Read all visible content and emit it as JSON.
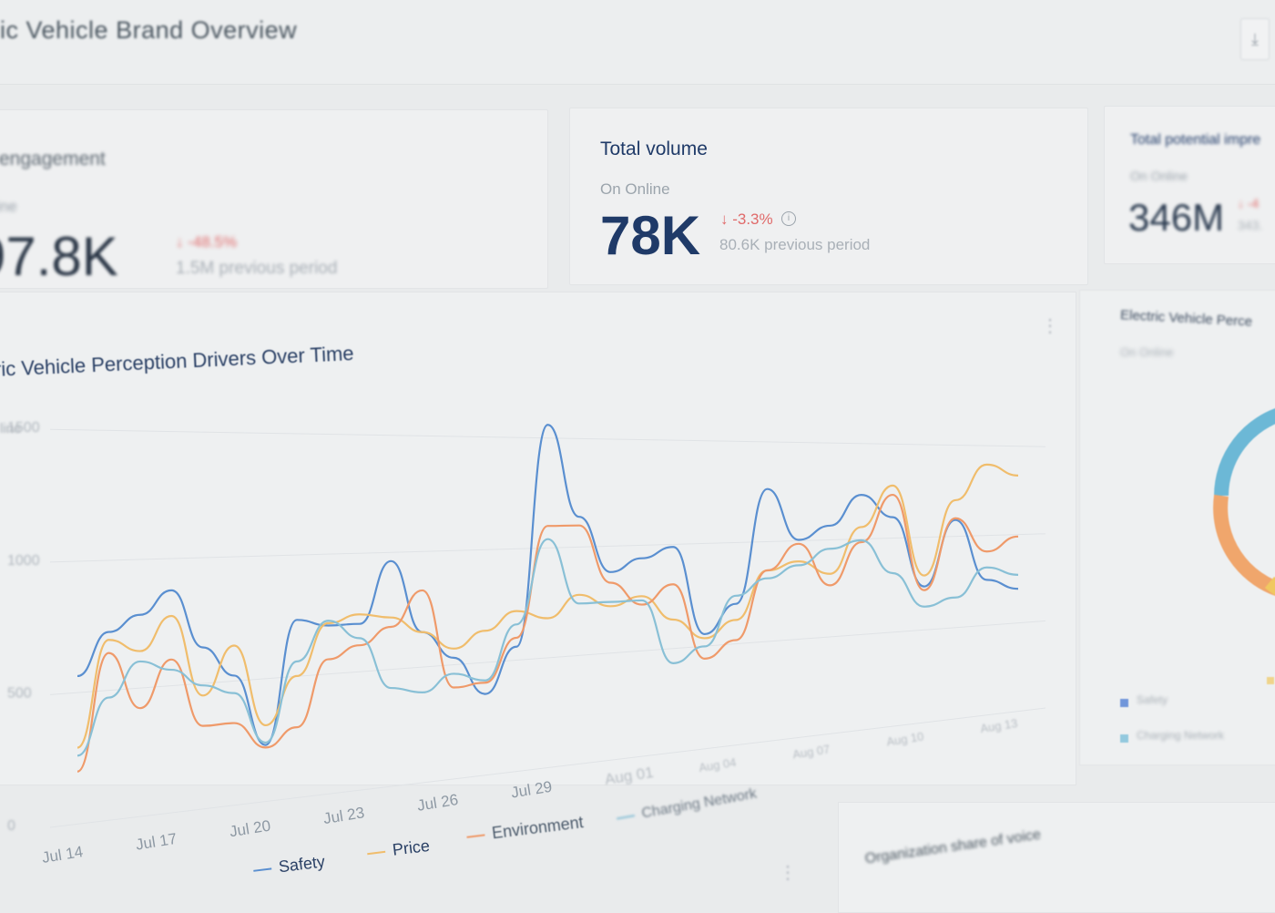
{
  "header": {
    "title": "ic Vehicle Brand Overview",
    "download_icon": "download-icon"
  },
  "metrics": [
    {
      "title": "engagement",
      "subtitle": "ine",
      "value": "97.8K",
      "change": "↓ -48.5%",
      "previous": "1.5M previous period"
    },
    {
      "title": "Total volume",
      "subtitle": "On Online",
      "value": "78K",
      "change": "↓ -3.3%",
      "previous": "80.6K previous period"
    },
    {
      "title": "Total potential impre",
      "subtitle": "On Online",
      "value": "346M",
      "change": "↓ -4",
      "previous": "343."
    }
  ],
  "chart": {
    "title": "ric Vehicle Perception Drivers Over Time",
    "y_label": "line"
  },
  "chart_data": {
    "type": "line",
    "title": "ric Vehicle Perception Drivers Over Time",
    "ylim": [
      0,
      1700
    ],
    "y_ticks": [
      "0",
      "500",
      "1000",
      "1500"
    ],
    "x": [
      "Jul 14",
      "Jul 15",
      "Jul 16",
      "Jul 17",
      "Jul 18",
      "Jul 19",
      "Jul 20",
      "Jul 21",
      "Jul 22",
      "Jul 23",
      "Jul 24",
      "Jul 25",
      "Jul 26",
      "Jul 27",
      "Jul 28",
      "Jul 29",
      "Jul 30",
      "Jul 31",
      "Aug 01",
      "Aug 02",
      "Aug 03",
      "Aug 04",
      "Aug 05",
      "Aug 06",
      "Aug 07",
      "Aug 08",
      "Aug 09",
      "Aug 10",
      "Aug 11",
      "Aug 12",
      "Aug 13"
    ],
    "x_tick_labels": [
      "Jul 14",
      "Jul 17",
      "Jul 20",
      "Jul 23",
      "Jul 26",
      "Jul 29",
      "Aug 01",
      "Aug 04",
      "Aug 07",
      "Aug 10",
      "Aug 13"
    ],
    "grid": true,
    "legend_position": "bottom",
    "series": [
      {
        "name": "Safety",
        "color": "#5a8fd0",
        "values": [
          560,
          720,
          780,
          870,
          640,
          520,
          230,
          730,
          700,
          700,
          960,
          650,
          530,
          360,
          560,
          1560,
          1140,
          880,
          940,
          990,
          560,
          700,
          1270,
          1010,
          1080,
          1240,
          1120,
          740,
          1100,
          760,
          700
        ]
      },
      {
        "name": "Price",
        "color": "#f0bd6c",
        "values": [
          290,
          690,
          640,
          770,
          450,
          640,
          310,
          500,
          710,
          740,
          720,
          650,
          570,
          640,
          720,
          680,
          780,
          720,
          760,
          640,
          540,
          620,
          860,
          900,
          830,
          1070,
          1290,
          800,
          1210,
          1410,
          1350
        ]
      },
      {
        "name": "Environment",
        "color": "#ef9a6a",
        "values": [
          200,
          640,
          420,
          600,
          330,
          330,
          220,
          290,
          560,
          610,
          680,
          830,
          400,
          410,
          600,
          1100,
          1100,
          830,
          720,
          810,
          440,
          520,
          860,
          990,
          770,
          990,
          1240,
          720,
          1110,
          920,
          1000
        ]
      },
      {
        "name": "Charging Network",
        "color": "#89c0d6",
        "values": [
          260,
          470,
          600,
          560,
          490,
          450,
          240,
          560,
          720,
          640,
          420,
          390,
          460,
          420,
          660,
          1040,
          740,
          740,
          740,
          430,
          500,
          740,
          820,
          880,
          960,
          1000,
          820,
          630,
          670,
          830,
          780
        ]
      }
    ]
  },
  "legend": {
    "safety": "Safety",
    "price": "Price",
    "environment": "Environment",
    "charging": "Charging Network"
  },
  "right_panel": {
    "title": "Electric Vehicle Perce",
    "subtitle": "On Online",
    "donut_colors": [
      "#6cb8d6",
      "#f0a66c",
      "#f0c860"
    ],
    "legend": [
      "Safety",
      "Charging Network"
    ]
  },
  "bottom_panel": {
    "title": "Organization share of voice"
  }
}
